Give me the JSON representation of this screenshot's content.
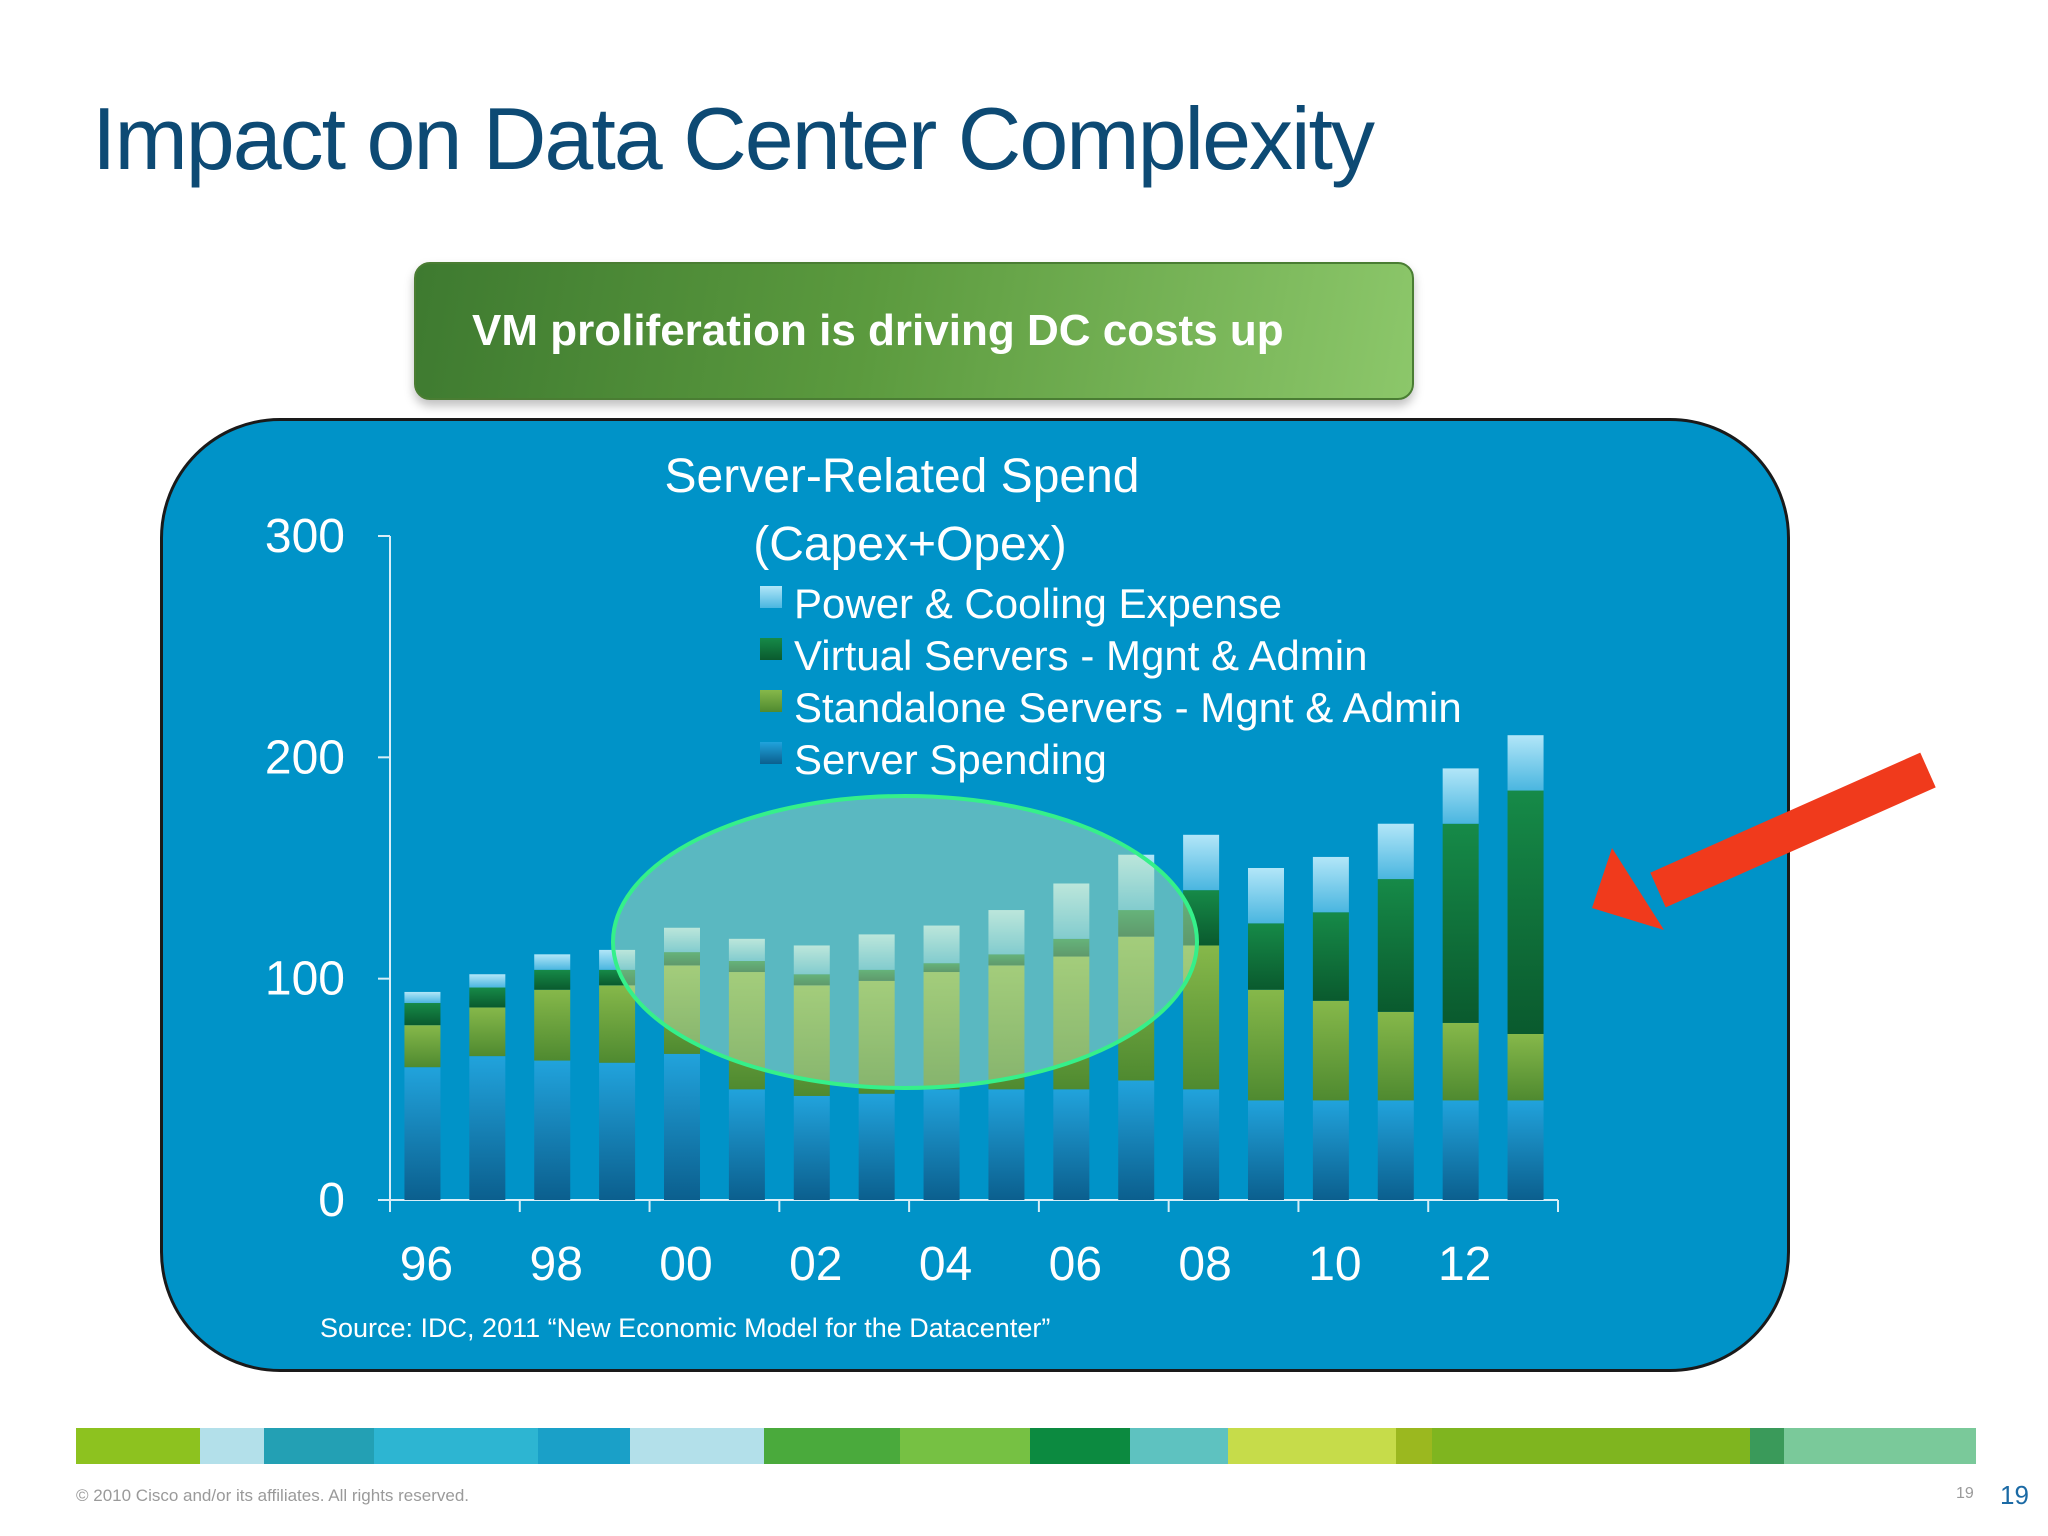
{
  "slide": {
    "title": "Impact on Data Center Complexity",
    "banner": "VM proliferation is driving DC costs up",
    "source": "Source: IDC, 2011 “New Economic Model for the Datacenter”",
    "copyright": "© 2010 Cisco and/or its affiliates. All rights reserved.",
    "page_number_small": "19",
    "page_number": "19"
  },
  "colors": {
    "title": "#0d4a74",
    "panel": "#0093c8",
    "arrow": "#f03a1c",
    "highlight_ellipse_stroke": "#35f08a",
    "stripe": [
      "#8dc21f",
      "#b3e0ea",
      "#23a0b4",
      "#2db5d2",
      "#1aa0c8",
      "#b3e0ea",
      "#4aaa3c",
      "#76c143",
      "#0c8a40",
      "#5ec2c0",
      "#c6dc4a",
      "#9bb81f",
      "#7fb51f",
      "#3a9a5a",
      "#7ac99a",
      "#0e6f7a"
    ]
  },
  "annotations": {
    "highlight": "ellipse over 2000–2007 bars",
    "arrow": "red arrow pointing at 2012–2013 bars"
  },
  "chart_data": {
    "type": "bar",
    "stacked": true,
    "title": "Server-Related Spend",
    "subtitle": "(Capex+Opex)",
    "x": [
      "96",
      "97",
      "98",
      "99",
      "00",
      "01",
      "02",
      "03",
      "04",
      "05",
      "06",
      "07",
      "08",
      "09",
      "10",
      "11",
      "12",
      "13"
    ],
    "x_tick_labels": [
      "96",
      "98",
      "00",
      "02",
      "04",
      "06",
      "08",
      "10",
      "12"
    ],
    "y_ticks": [
      "0",
      "100",
      "200",
      "300"
    ],
    "ylim": [
      0,
      300
    ],
    "legend_position": "top-center",
    "series": [
      {
        "name": "Server Spending",
        "color": "#1b8cc8",
        "values": [
          60,
          65,
          63,
          62,
          66,
          50,
          47,
          48,
          50,
          50,
          50,
          54,
          50,
          45,
          45,
          45,
          45,
          45
        ]
      },
      {
        "name": "Standalone Servers - Mgnt & Admin",
        "color": "#78a83e",
        "values": [
          19,
          22,
          32,
          35,
          40,
          53,
          50,
          51,
          53,
          56,
          60,
          65,
          65,
          50,
          45,
          40,
          35,
          30
        ]
      },
      {
        "name": "Virtual Servers - Mgnt & Admin",
        "color": "#0e7a3a",
        "values": [
          10,
          9,
          9,
          7,
          6,
          5,
          5,
          5,
          4,
          5,
          8,
          12,
          25,
          30,
          40,
          60,
          90,
          110
        ]
      },
      {
        "name": "Power & Cooling Expense",
        "color": "#7fd0ee",
        "values": [
          5,
          6,
          7,
          9,
          11,
          10,
          13,
          16,
          17,
          20,
          25,
          25,
          25,
          25,
          25,
          25,
          25,
          25
        ]
      }
    ]
  }
}
